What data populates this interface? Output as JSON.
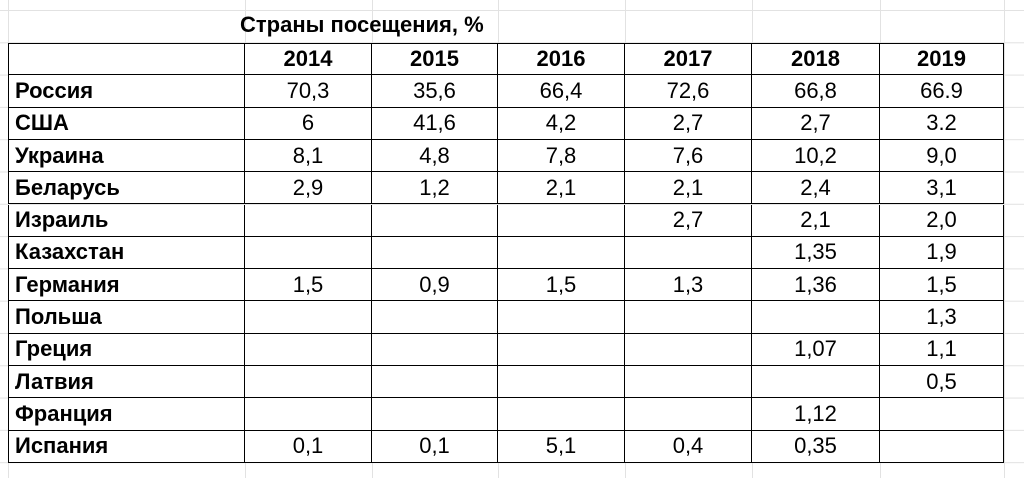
{
  "title": "Страны посещения, %",
  "table": {
    "header": [
      "2014",
      "2015",
      "2016",
      "2017",
      "2018",
      "2019"
    ],
    "rows": [
      [
        "Россия",
        "70,3",
        "35,6",
        "66,4",
        "72,6",
        "66,8",
        "66.9"
      ],
      [
        "США",
        "6",
        "41,6",
        "4,2",
        "2,7",
        "2,7",
        "3.2"
      ],
      [
        "Украина",
        "8,1",
        "4,8",
        "7,8",
        "7,6",
        "10,2",
        "9,0"
      ],
      [
        "Беларусь",
        "2,9",
        "1,2",
        "2,1",
        "2,1",
        "2,4",
        "3,1"
      ],
      [
        "Израиль",
        null,
        null,
        null,
        "2,7",
        "2,1",
        "2,0"
      ],
      [
        "Казахстан",
        null,
        null,
        null,
        null,
        "1,35",
        "1,9"
      ],
      [
        "Германия",
        "1,5",
        "0,9",
        "1,5",
        "1,3",
        "1,36",
        "1,5"
      ],
      [
        "Польша",
        null,
        null,
        null,
        null,
        null,
        "1,3"
      ],
      [
        "Греция",
        null,
        null,
        null,
        null,
        "1,07",
        "1,1"
      ],
      [
        "Латвия",
        null,
        null,
        null,
        null,
        null,
        "0,5"
      ],
      [
        "Франция",
        null,
        null,
        null,
        null,
        "1,12",
        null
      ],
      [
        "Испания",
        "0,1",
        "0,1",
        "5,1",
        "0,4",
        "0,35",
        null
      ]
    ]
  }
}
